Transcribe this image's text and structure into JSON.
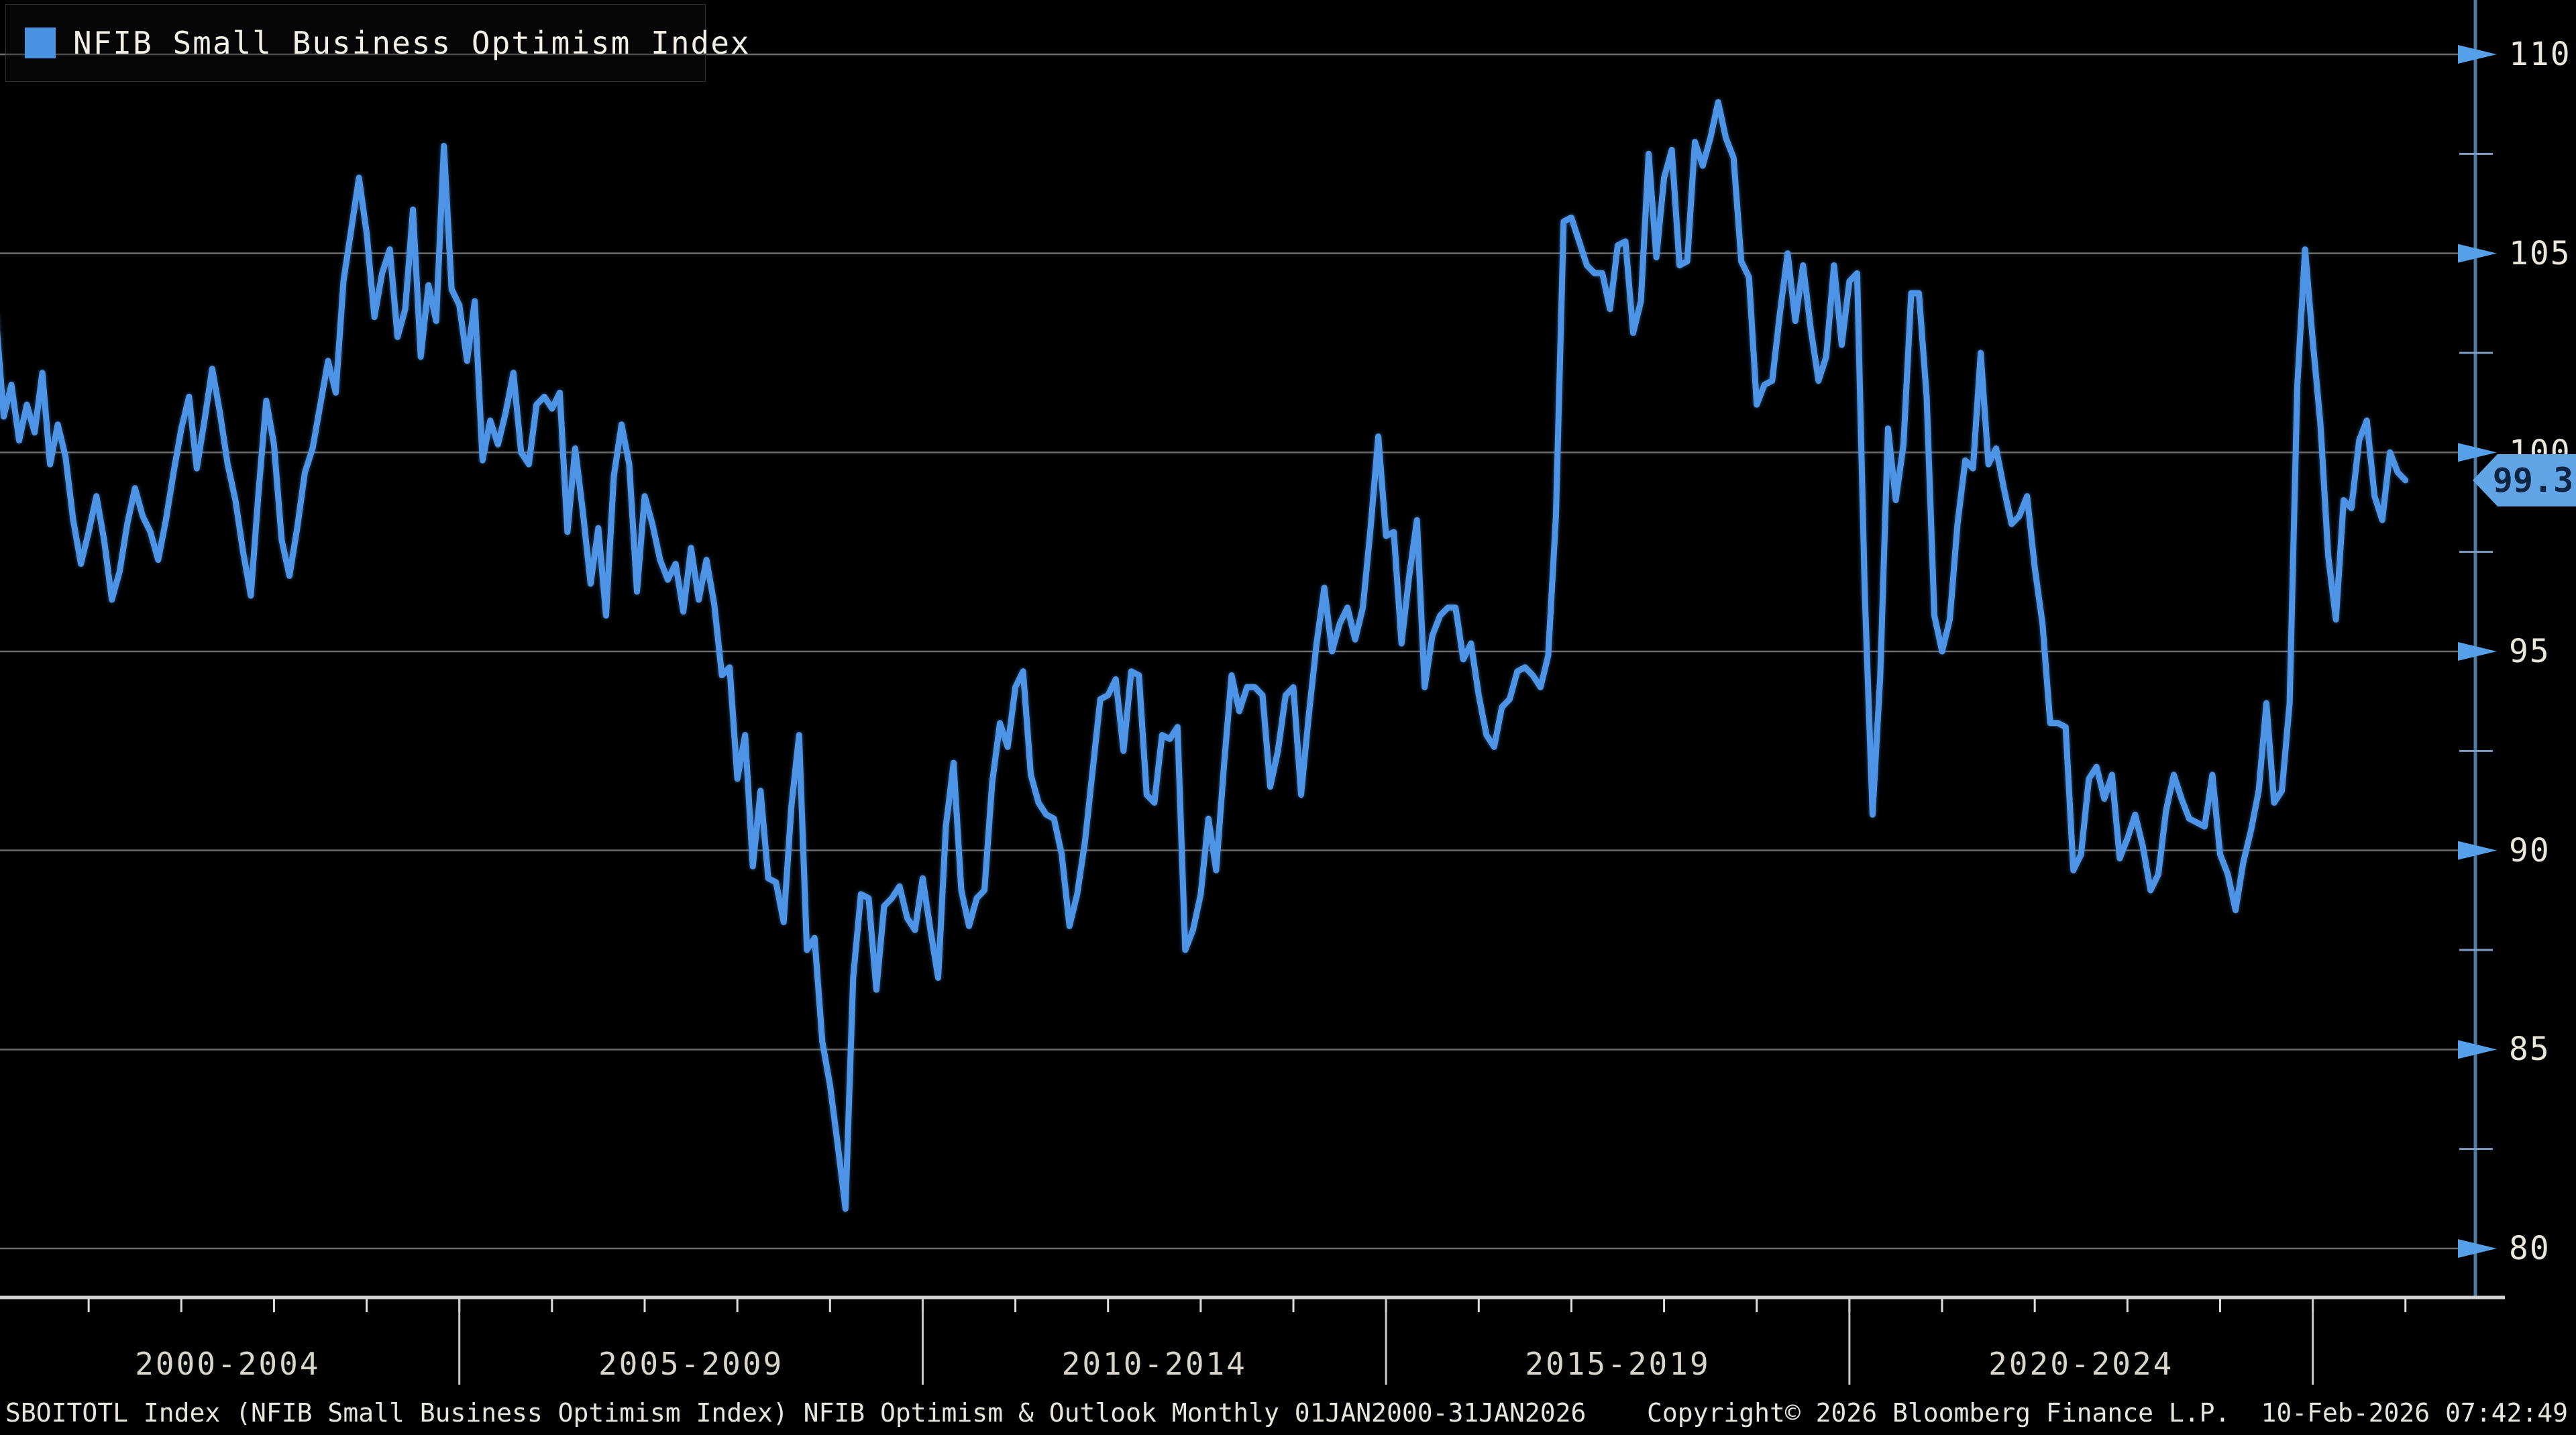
{
  "legend": {
    "label": "NFIB Small Business Optimism Index",
    "swatch_color": "#4a92e2"
  },
  "badge": {
    "value": "99.3",
    "bg": "#61a4e6",
    "text_color": "#0d2543"
  },
  "status_bar": {
    "left": "SBOITOTL Index (NFIB Small Business Optimism Index) NFIB Optimism & Outlook Monthly 01JAN2000-31JAN2026",
    "copyright": "Copyright© 2026 Bloomberg Finance L.P.",
    "timestamp": "10-Feb-2026 07:42:49"
  },
  "colors": {
    "background": "#000000",
    "line": "#4d94e6",
    "grid": "#6d6d6d",
    "axis_blue": "#4e7aa6",
    "tick_arrow": "#55a0e8",
    "minor_tick": "#7e9dc2",
    "xaxis_line": "#d4d4d4",
    "year_tick": "#dedede",
    "divider": "#c9c9c9"
  },
  "chart_data": {
    "type": "line",
    "title": "NFIB Small Business Optimism Index",
    "x_start": "2000-01",
    "x_end": "2026-01",
    "frequency": "monthly",
    "ylim": [
      78.7,
      111.4
    ],
    "grid": "horizontal",
    "legend_position": "top-left",
    "y_major_ticks": [
      110,
      105,
      100,
      95,
      90,
      85,
      80
    ],
    "y_minor_ticks": [
      107.5,
      102.5,
      97.5,
      92.5,
      87.5,
      82.5
    ],
    "x_band_labels": [
      "2000-2004",
      "2005-2009",
      "2010-2014",
      "2015-2019",
      "2020-2024"
    ],
    "x_divider_years": [
      2005,
      2010,
      2015,
      2020,
      2025
    ],
    "x_year_range": [
      2000,
      2026
    ],
    "last_value": 99.3,
    "series": [
      {
        "name": "NFIB Small Business Optimism Index",
        "values": [
          103.4,
          100.9,
          101.7,
          100.3,
          101.2,
          100.5,
          102.0,
          99.7,
          100.7,
          99.9,
          98.3,
          97.2,
          98.0,
          98.9,
          97.8,
          96.3,
          97.0,
          98.2,
          99.1,
          98.4,
          98.0,
          97.3,
          98.3,
          99.5,
          100.6,
          101.4,
          99.6,
          100.8,
          102.1,
          101.0,
          99.7,
          98.8,
          97.5,
          96.4,
          99.0,
          101.3,
          100.2,
          97.8,
          96.9,
          98.1,
          99.5,
          100.1,
          101.2,
          102.3,
          101.5,
          104.3,
          105.6,
          106.9,
          105.5,
          103.4,
          104.5,
          105.1,
          102.9,
          103.6,
          106.1,
          102.4,
          104.2,
          103.3,
          107.7,
          104.1,
          103.7,
          102.3,
          103.8,
          99.8,
          100.8,
          100.2,
          101.0,
          102.0,
          100.0,
          99.7,
          101.2,
          101.4,
          101.1,
          101.5,
          98.0,
          100.1,
          98.5,
          96.7,
          98.1,
          95.9,
          99.4,
          100.7,
          99.7,
          96.5,
          98.9,
          98.2,
          97.3,
          96.8,
          97.2,
          96.0,
          97.6,
          96.3,
          97.3,
          96.2,
          94.4,
          94.6,
          91.8,
          92.9,
          89.6,
          91.5,
          89.3,
          89.2,
          88.2,
          91.1,
          92.9,
          87.5,
          87.8,
          85.2,
          84.1,
          82.6,
          81.0,
          86.8,
          88.9,
          88.8,
          86.5,
          88.6,
          88.8,
          89.1,
          88.3,
          88.0,
          89.3,
          88.0,
          86.8,
          90.6,
          92.2,
          89.0,
          88.1,
          88.8,
          89.0,
          91.7,
          93.2,
          92.6,
          94.1,
          94.5,
          91.9,
          91.2,
          90.9,
          90.8,
          89.9,
          88.1,
          88.9,
          90.2,
          92.0,
          93.8,
          93.9,
          94.3,
          92.5,
          94.5,
          94.4,
          91.4,
          91.2,
          92.9,
          92.8,
          93.1,
          87.5,
          88.0,
          88.9,
          90.8,
          89.5,
          92.1,
          94.4,
          93.5,
          94.1,
          94.1,
          93.9,
          91.6,
          92.5,
          93.9,
          94.1,
          91.4,
          93.4,
          95.2,
          96.6,
          95.0,
          95.7,
          96.1,
          95.3,
          96.1,
          98.1,
          100.4,
          97.9,
          98.0,
          95.2,
          96.9,
          98.3,
          94.1,
          95.4,
          95.9,
          96.1,
          96.1,
          94.8,
          95.2,
          93.9,
          92.9,
          92.6,
          93.6,
          93.8,
          94.5,
          94.6,
          94.4,
          94.1,
          94.9,
          98.4,
          105.8,
          105.9,
          105.3,
          104.7,
          104.5,
          104.5,
          103.6,
          105.2,
          105.3,
          103.0,
          103.8,
          107.5,
          104.9,
          106.9,
          107.6,
          104.7,
          104.8,
          107.8,
          107.2,
          107.9,
          108.8,
          107.9,
          107.4,
          104.8,
          104.4,
          101.2,
          101.7,
          101.8,
          103.5,
          105.0,
          103.3,
          104.7,
          103.1,
          101.8,
          102.4,
          104.7,
          102.7,
          104.3,
          104.5,
          96.4,
          90.9,
          94.4,
          100.6,
          98.8,
          100.2,
          104.0,
          104.0,
          101.4,
          95.9,
          95.0,
          95.8,
          98.2,
          99.8,
          99.6,
          102.5,
          99.7,
          100.1,
          99.1,
          98.2,
          98.4,
          98.9,
          97.1,
          95.7,
          93.2,
          93.2,
          93.1,
          89.5,
          89.9,
          91.8,
          92.1,
          91.3,
          91.9,
          89.8,
          90.3,
          90.9,
          90.1,
          89.0,
          89.4,
          91.0,
          91.9,
          91.3,
          90.8,
          90.7,
          90.6,
          91.9,
          89.9,
          89.4,
          88.5,
          89.7,
          90.5,
          91.5,
          93.7,
          91.2,
          91.5,
          93.7,
          101.7,
          105.1,
          102.8,
          100.7,
          97.4,
          95.8,
          98.8,
          98.6,
          100.3,
          100.8,
          98.9,
          98.3,
          100.0,
          99.5,
          99.3
        ]
      }
    ]
  }
}
